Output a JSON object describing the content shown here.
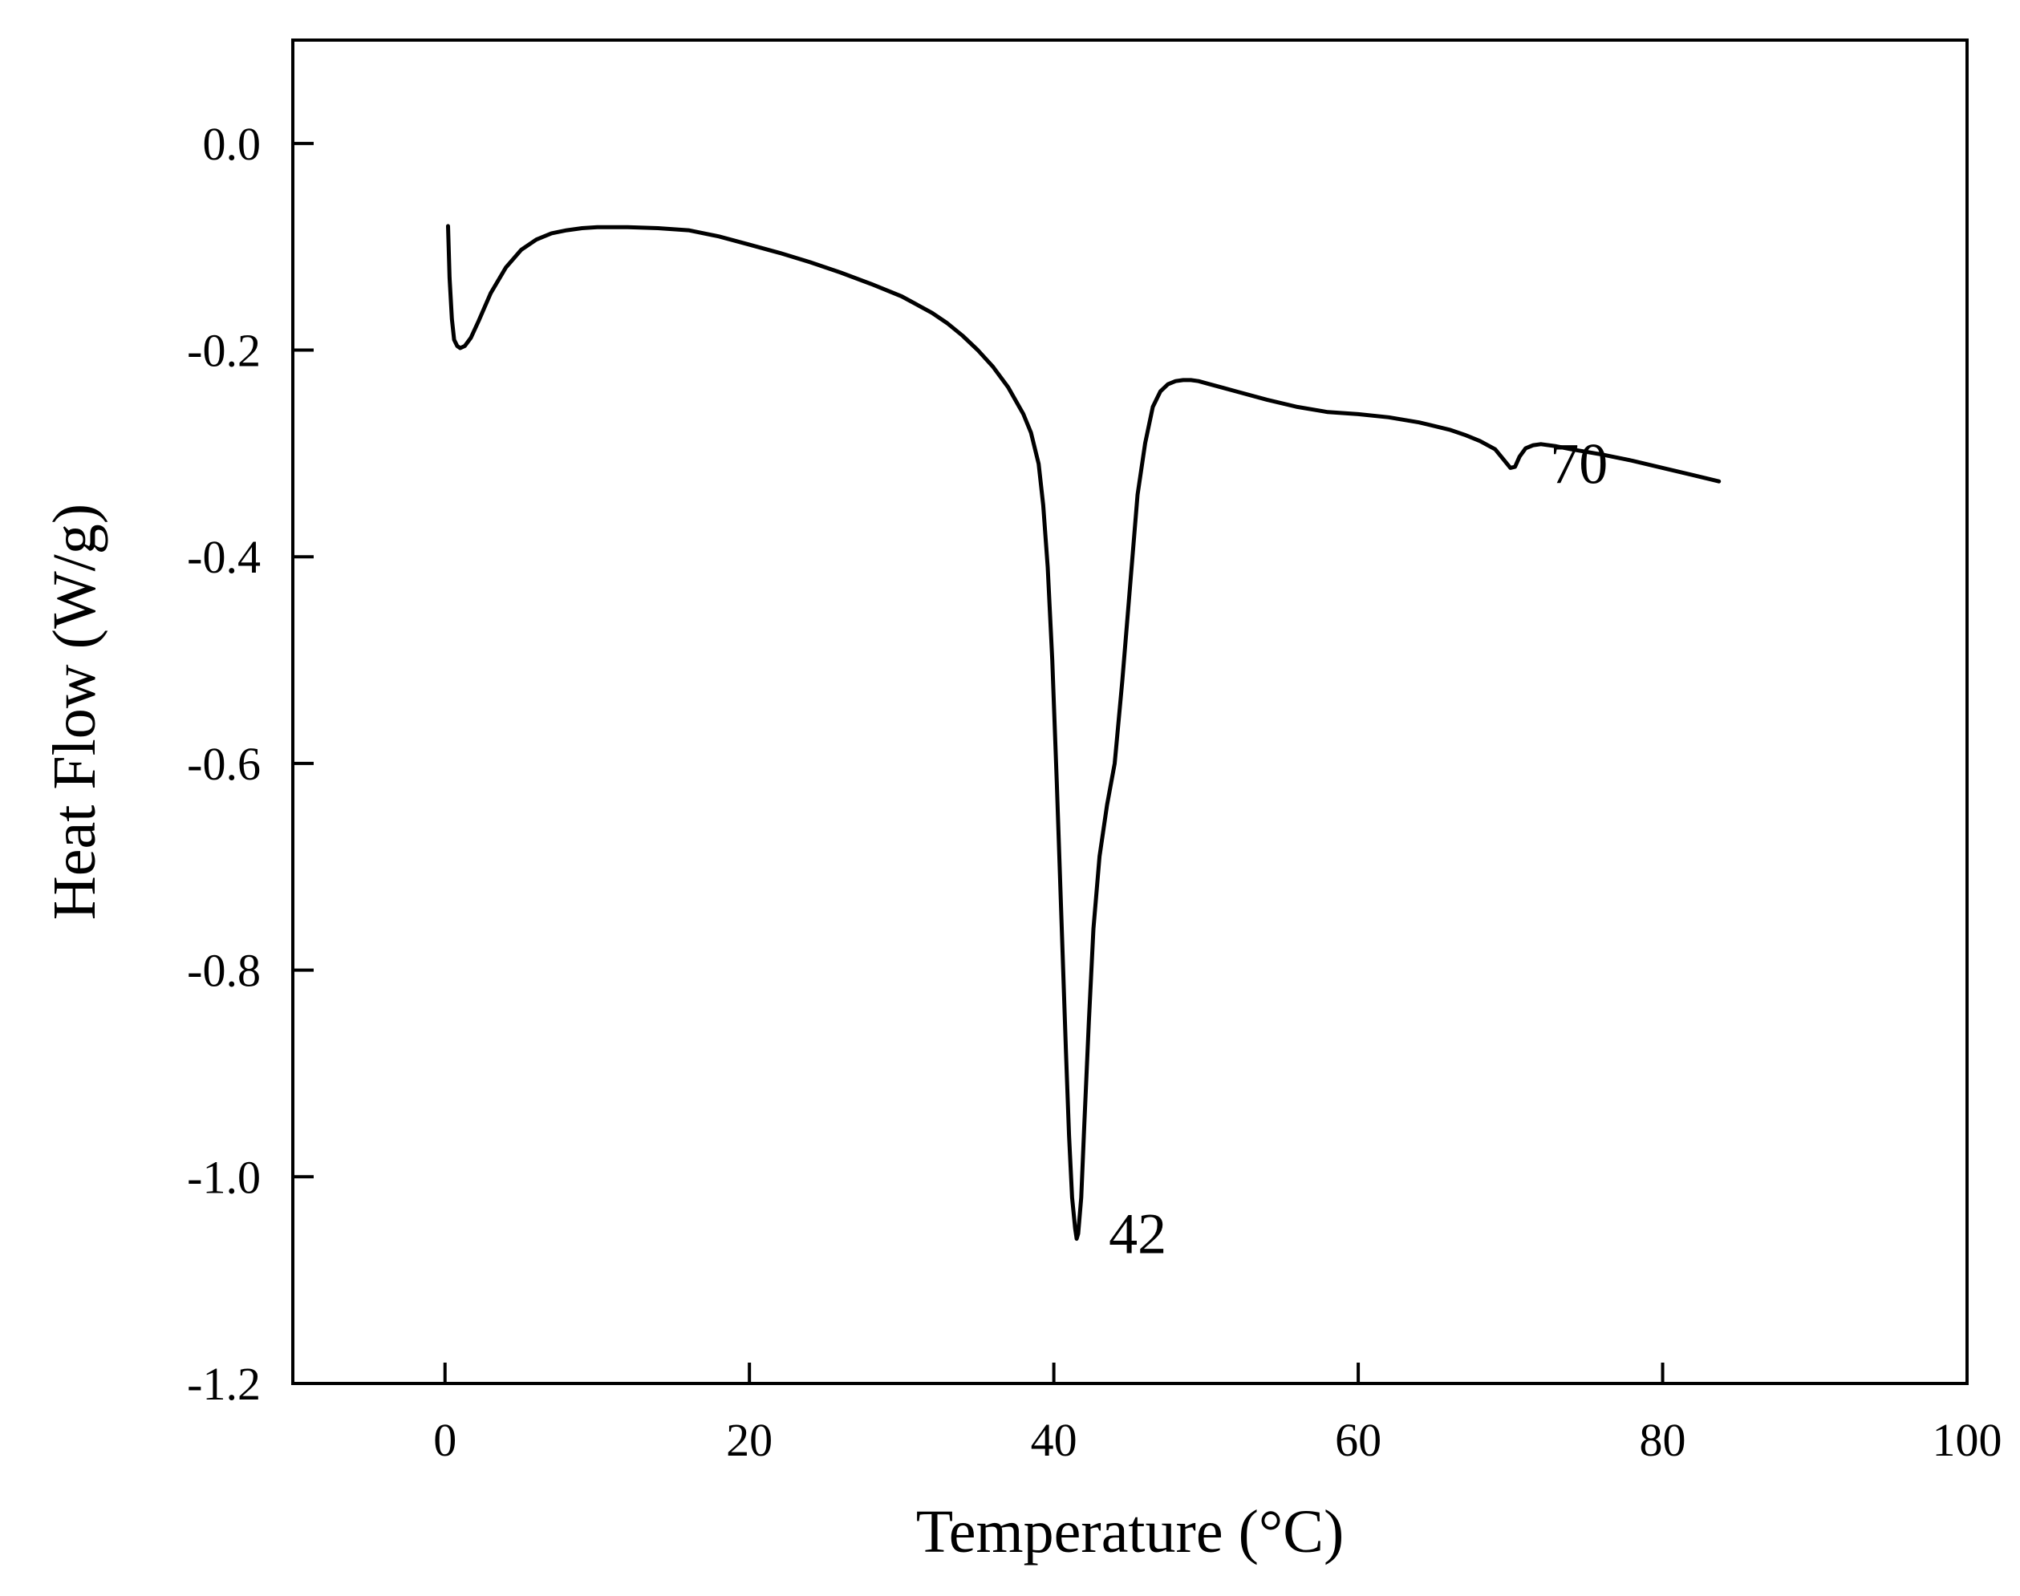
{
  "chart_data": {
    "type": "line",
    "title": "",
    "xlabel": "Temperature (°C)",
    "ylabel": "Heat Flow (W/g)",
    "xlim": [
      -10,
      100
    ],
    "ylim": [
      -1.2,
      0.1
    ],
    "xticks": [
      "0",
      "20",
      "40",
      "60",
      "80",
      "100"
    ],
    "yticks": [
      "0.0",
      "-0.2",
      "-0.4",
      "-0.6",
      "-0.8",
      "-1.0",
      "-1.2"
    ],
    "grid": false,
    "legend": "none",
    "line_color": "#000000",
    "annotations": [
      {
        "text": "42",
        "x": 41.5,
        "y": -1.06
      },
      {
        "text": "70",
        "x": 70.5,
        "y": -0.315
      }
    ],
    "series": [
      {
        "x": [
          0.2,
          0.3,
          0.45,
          0.6,
          0.8,
          1.0,
          1.3,
          1.7,
          2.2,
          3.0,
          4.0,
          5.0,
          6.0,
          7.0,
          8.0,
          9.0,
          10.0,
          11.0,
          12.0,
          14.0,
          16.0,
          18.0,
          20.0,
          22.0,
          24.0,
          26.0,
          28.0,
          30.0,
          31.0,
          32.0,
          33.0,
          34.0,
          35.0,
          36.0,
          37.0,
          38.0,
          38.5,
          39.0,
          39.3,
          39.6,
          39.9,
          40.2,
          40.5,
          40.8,
          41.0,
          41.2,
          41.4,
          41.5,
          41.6,
          41.8,
          42.0,
          42.3,
          42.6,
          43.0,
          43.5,
          44.0,
          44.5,
          45.0,
          45.5,
          46.0,
          46.5,
          47.0,
          47.5,
          48.0,
          48.5,
          49.0,
          49.5,
          50.0,
          51.0,
          52.0,
          54.0,
          56.0,
          58.0,
          60.0,
          62.0,
          64.0,
          66.0,
          67.0,
          68.0,
          69.0,
          69.5,
          70.0,
          70.3,
          70.6,
          71.0,
          71.5,
          72.0,
          73.0,
          74.0,
          76.0,
          78.0,
          80.0,
          82.0,
          83.7
        ],
        "y": [
          -0.08,
          -0.13,
          -0.17,
          -0.19,
          -0.196,
          -0.198,
          -0.196,
          -0.188,
          -0.172,
          -0.145,
          -0.12,
          -0.103,
          -0.093,
          -0.087,
          -0.084,
          -0.082,
          -0.081,
          -0.081,
          -0.081,
          -0.082,
          -0.084,
          -0.09,
          -0.098,
          -0.106,
          -0.115,
          -0.125,
          -0.136,
          -0.148,
          -0.156,
          -0.164,
          -0.174,
          -0.186,
          -0.2,
          -0.216,
          -0.236,
          -0.262,
          -0.28,
          -0.31,
          -0.35,
          -0.41,
          -0.5,
          -0.62,
          -0.75,
          -0.88,
          -0.96,
          -1.02,
          -1.05,
          -1.06,
          -1.055,
          -1.02,
          -0.95,
          -0.85,
          -0.76,
          -0.69,
          -0.64,
          -0.6,
          -0.52,
          -0.43,
          -0.34,
          -0.29,
          -0.255,
          -0.24,
          -0.233,
          -0.23,
          -0.229,
          -0.229,
          -0.23,
          -0.232,
          -0.236,
          -0.24,
          -0.248,
          -0.255,
          -0.26,
          -0.262,
          -0.265,
          -0.27,
          -0.277,
          -0.282,
          -0.288,
          -0.296,
          -0.305,
          -0.314,
          -0.313,
          -0.303,
          -0.295,
          -0.292,
          -0.291,
          -0.293,
          -0.296,
          -0.301,
          -0.307,
          -0.314,
          -0.321,
          -0.327
        ]
      }
    ]
  }
}
